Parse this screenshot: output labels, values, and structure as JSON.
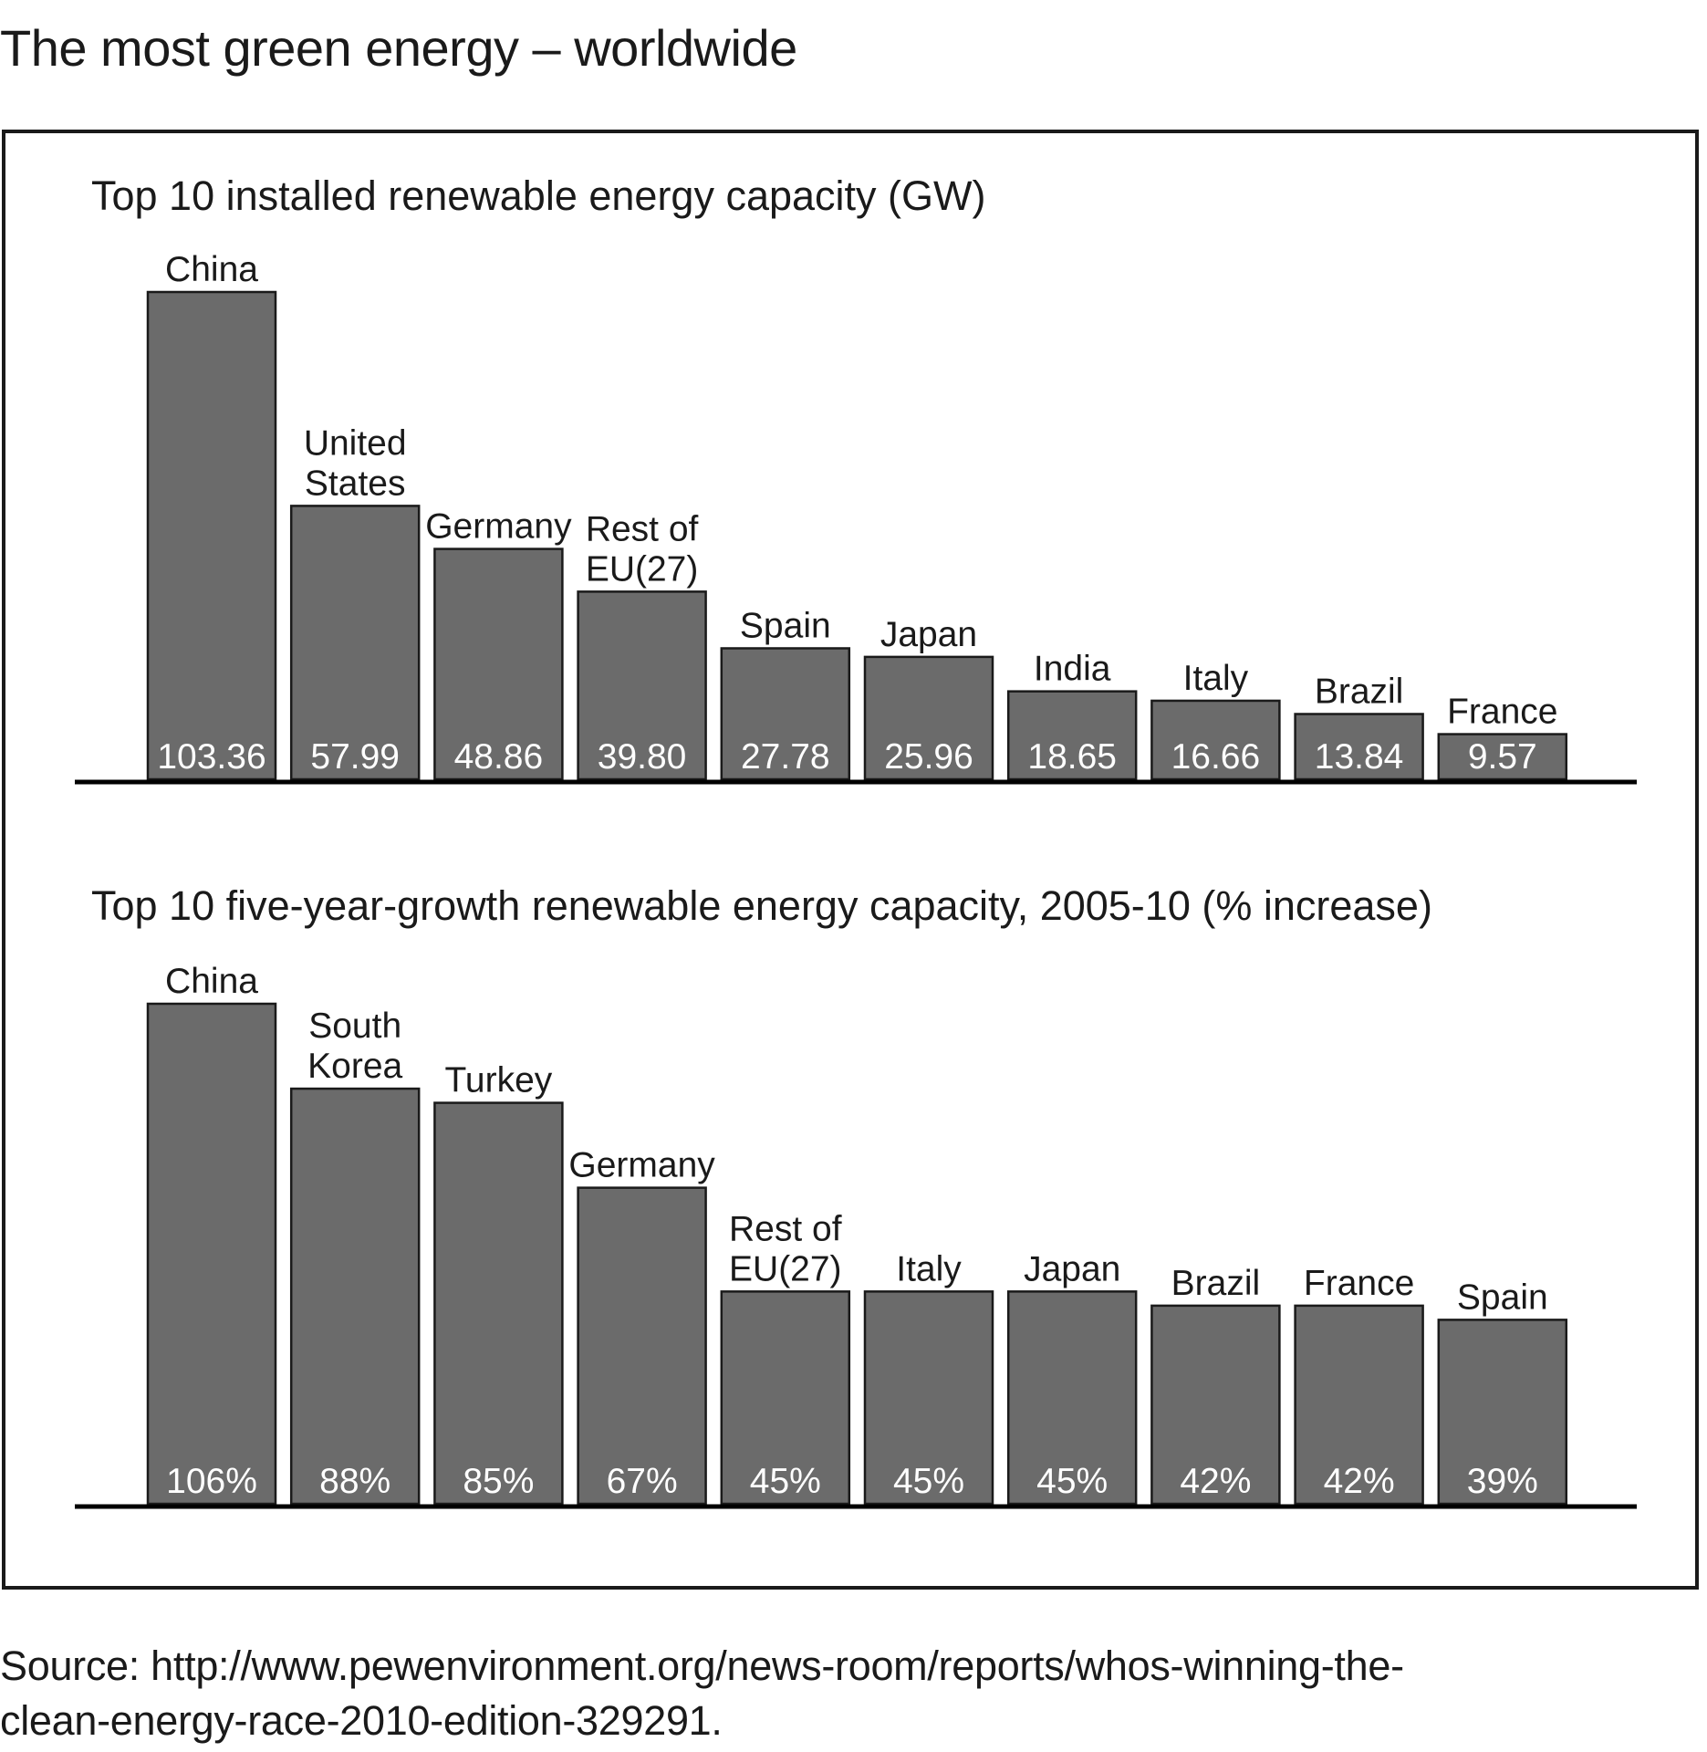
{
  "title": "The most green energy – worldwide",
  "source": {
    "line1": "Source: http://www.pewenvironment.org/news-room/reports/whos-winning-the-",
    "line2": "clean-energy-race-2010-edition-329291."
  },
  "chart_data": [
    {
      "type": "bar",
      "title": "Top 10 installed renewable energy capacity (GW)",
      "categories": [
        [
          "China"
        ],
        [
          "United",
          "States"
        ],
        [
          "Germany"
        ],
        [
          "Rest of",
          "EU(27)"
        ],
        [
          "Spain"
        ],
        [
          "Japan"
        ],
        [
          "India"
        ],
        [
          "Italy"
        ],
        [
          "Brazil"
        ],
        [
          "France"
        ]
      ],
      "values": [
        103.36,
        57.99,
        48.86,
        39.8,
        27.78,
        25.96,
        18.65,
        16.66,
        13.84,
        9.57
      ],
      "value_labels": [
        "103.36",
        "57.99",
        "48.86",
        "39.80",
        "27.78",
        "25.96",
        "18.65",
        "16.66",
        "13.84",
        "9.57"
      ],
      "xlabel": "",
      "ylabel": "",
      "ylim": [
        0,
        103.36
      ],
      "grid": false,
      "legend": "none"
    },
    {
      "type": "bar",
      "title": "Top 10 five-year-growth renewable energy capacity, 2005-10 (% increase)",
      "categories": [
        [
          "China"
        ],
        [
          "South",
          "Korea"
        ],
        [
          "Turkey"
        ],
        [
          "Germany"
        ],
        [
          "Rest of",
          "EU(27)"
        ],
        [
          "Italy"
        ],
        [
          "Japan"
        ],
        [
          "Brazil"
        ],
        [
          "France"
        ],
        [
          "Spain"
        ]
      ],
      "values": [
        106,
        88,
        85,
        67,
        45,
        45,
        45,
        42,
        42,
        39
      ],
      "value_labels": [
        "106%",
        "88%",
        "85%",
        "67%",
        "45%",
        "45%",
        "45%",
        "42%",
        "42%",
        "39%"
      ],
      "xlabel": "",
      "ylabel": "",
      "ylim": [
        0,
        106
      ],
      "grid": false,
      "legend": "none"
    }
  ]
}
